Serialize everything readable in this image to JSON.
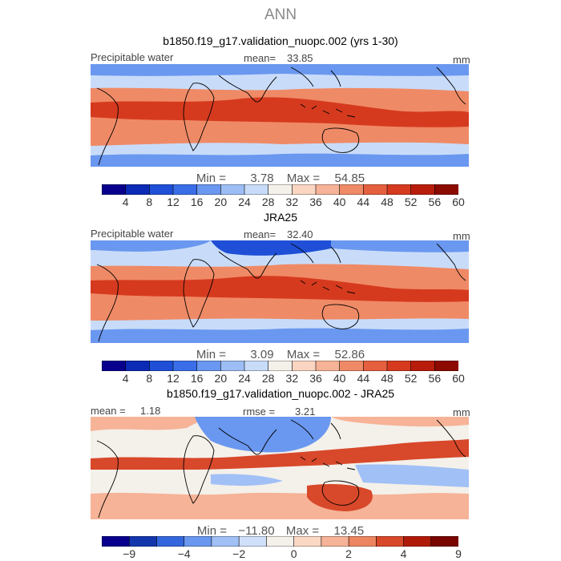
{
  "season": "ANN",
  "panels": [
    {
      "title": "b1850.f19_g17.validation_nuopc.002 (yrs 1-30)",
      "left_label": "Precipitable water",
      "mean_label": "mean=",
      "mean_value": "33.85",
      "units": "mm",
      "min_text": "Min =",
      "min_value": "3.78",
      "max_text": "Max =",
      "max_value": "54.85"
    },
    {
      "title": "JRA25",
      "left_label": "Precipitable water",
      "mean_label": "mean=",
      "mean_value": "32.40",
      "units": "mm",
      "min_text": "Min =",
      "min_value": "3.09",
      "max_text": "Max =",
      "max_value": "52.86"
    },
    {
      "title": "b1850.f19_g17.validation_nuopc.002 - JRA25",
      "left_label": "mean =",
      "mean_value": "1.18",
      "rmse_label": "rmse =",
      "rmse_value": "3.21",
      "units": "mm",
      "min_text": "Min =",
      "min_value": "−11.80",
      "max_text": "Max =",
      "max_value": "13.45"
    }
  ],
  "chart_data": [
    {
      "type": "heatmap",
      "title": "b1850.f19_g17.validation_nuopc.002 (yrs 1-30)",
      "variable": "Precipitable water",
      "units": "mm",
      "mean": 33.85,
      "min": 3.78,
      "max": 54.85,
      "contour_levels": [
        4,
        8,
        12,
        16,
        20,
        24,
        28,
        32,
        36,
        40,
        44,
        48,
        52,
        56,
        60
      ],
      "colorbar_tick_labels": [
        "4",
        "8",
        "12",
        "16",
        "20",
        "24",
        "28",
        "32",
        "36",
        "40",
        "44",
        "48",
        "52",
        "56",
        "60"
      ]
    },
    {
      "type": "heatmap",
      "title": "JRA25",
      "variable": "Precipitable water",
      "units": "mm",
      "mean": 32.4,
      "min": 3.09,
      "max": 52.86,
      "contour_levels": [
        4,
        8,
        12,
        16,
        20,
        24,
        28,
        32,
        36,
        40,
        44,
        48,
        52,
        56,
        60
      ],
      "colorbar_tick_labels": [
        "4",
        "8",
        "12",
        "16",
        "20",
        "24",
        "28",
        "32",
        "36",
        "40",
        "44",
        "48",
        "52",
        "56",
        "60"
      ]
    },
    {
      "type": "heatmap",
      "title": "b1850.f19_g17.validation_nuopc.002 - JRA25",
      "units": "mm",
      "mean": 1.18,
      "rmse": 3.21,
      "min": -11.8,
      "max": 13.45,
      "contour_levels": [
        -9,
        -6,
        -4,
        -3,
        -2,
        -1,
        0,
        1,
        2,
        3,
        4,
        6,
        9
      ],
      "colorbar_tick_labels": [
        "−9",
        "−4",
        "−2",
        "0",
        "2",
        "4",
        "9"
      ]
    }
  ],
  "colors": {
    "scale": [
      "#08008c",
      "#0b2ab5",
      "#1f4fd6",
      "#3a6ee8",
      "#6a97ef",
      "#9dbdf5",
      "#c8dcfa",
      "#f4f0ea",
      "#fad6c2",
      "#f6b397",
      "#ef8a66",
      "#e5603f",
      "#d63a1e",
      "#b81d0b",
      "#8c0a00"
    ],
    "diff_scale": [
      "#08008c",
      "#1436ad",
      "#3466dd",
      "#6a97ef",
      "#a0c0f6",
      "#d0e0fb",
      "#f4f0ea",
      "#fbd8c4",
      "#f6b397",
      "#ec8560",
      "#d8482a",
      "#b01a0a",
      "#780500"
    ],
    "ocean_mid": "#f0b9a2",
    "coast": "#000000"
  }
}
